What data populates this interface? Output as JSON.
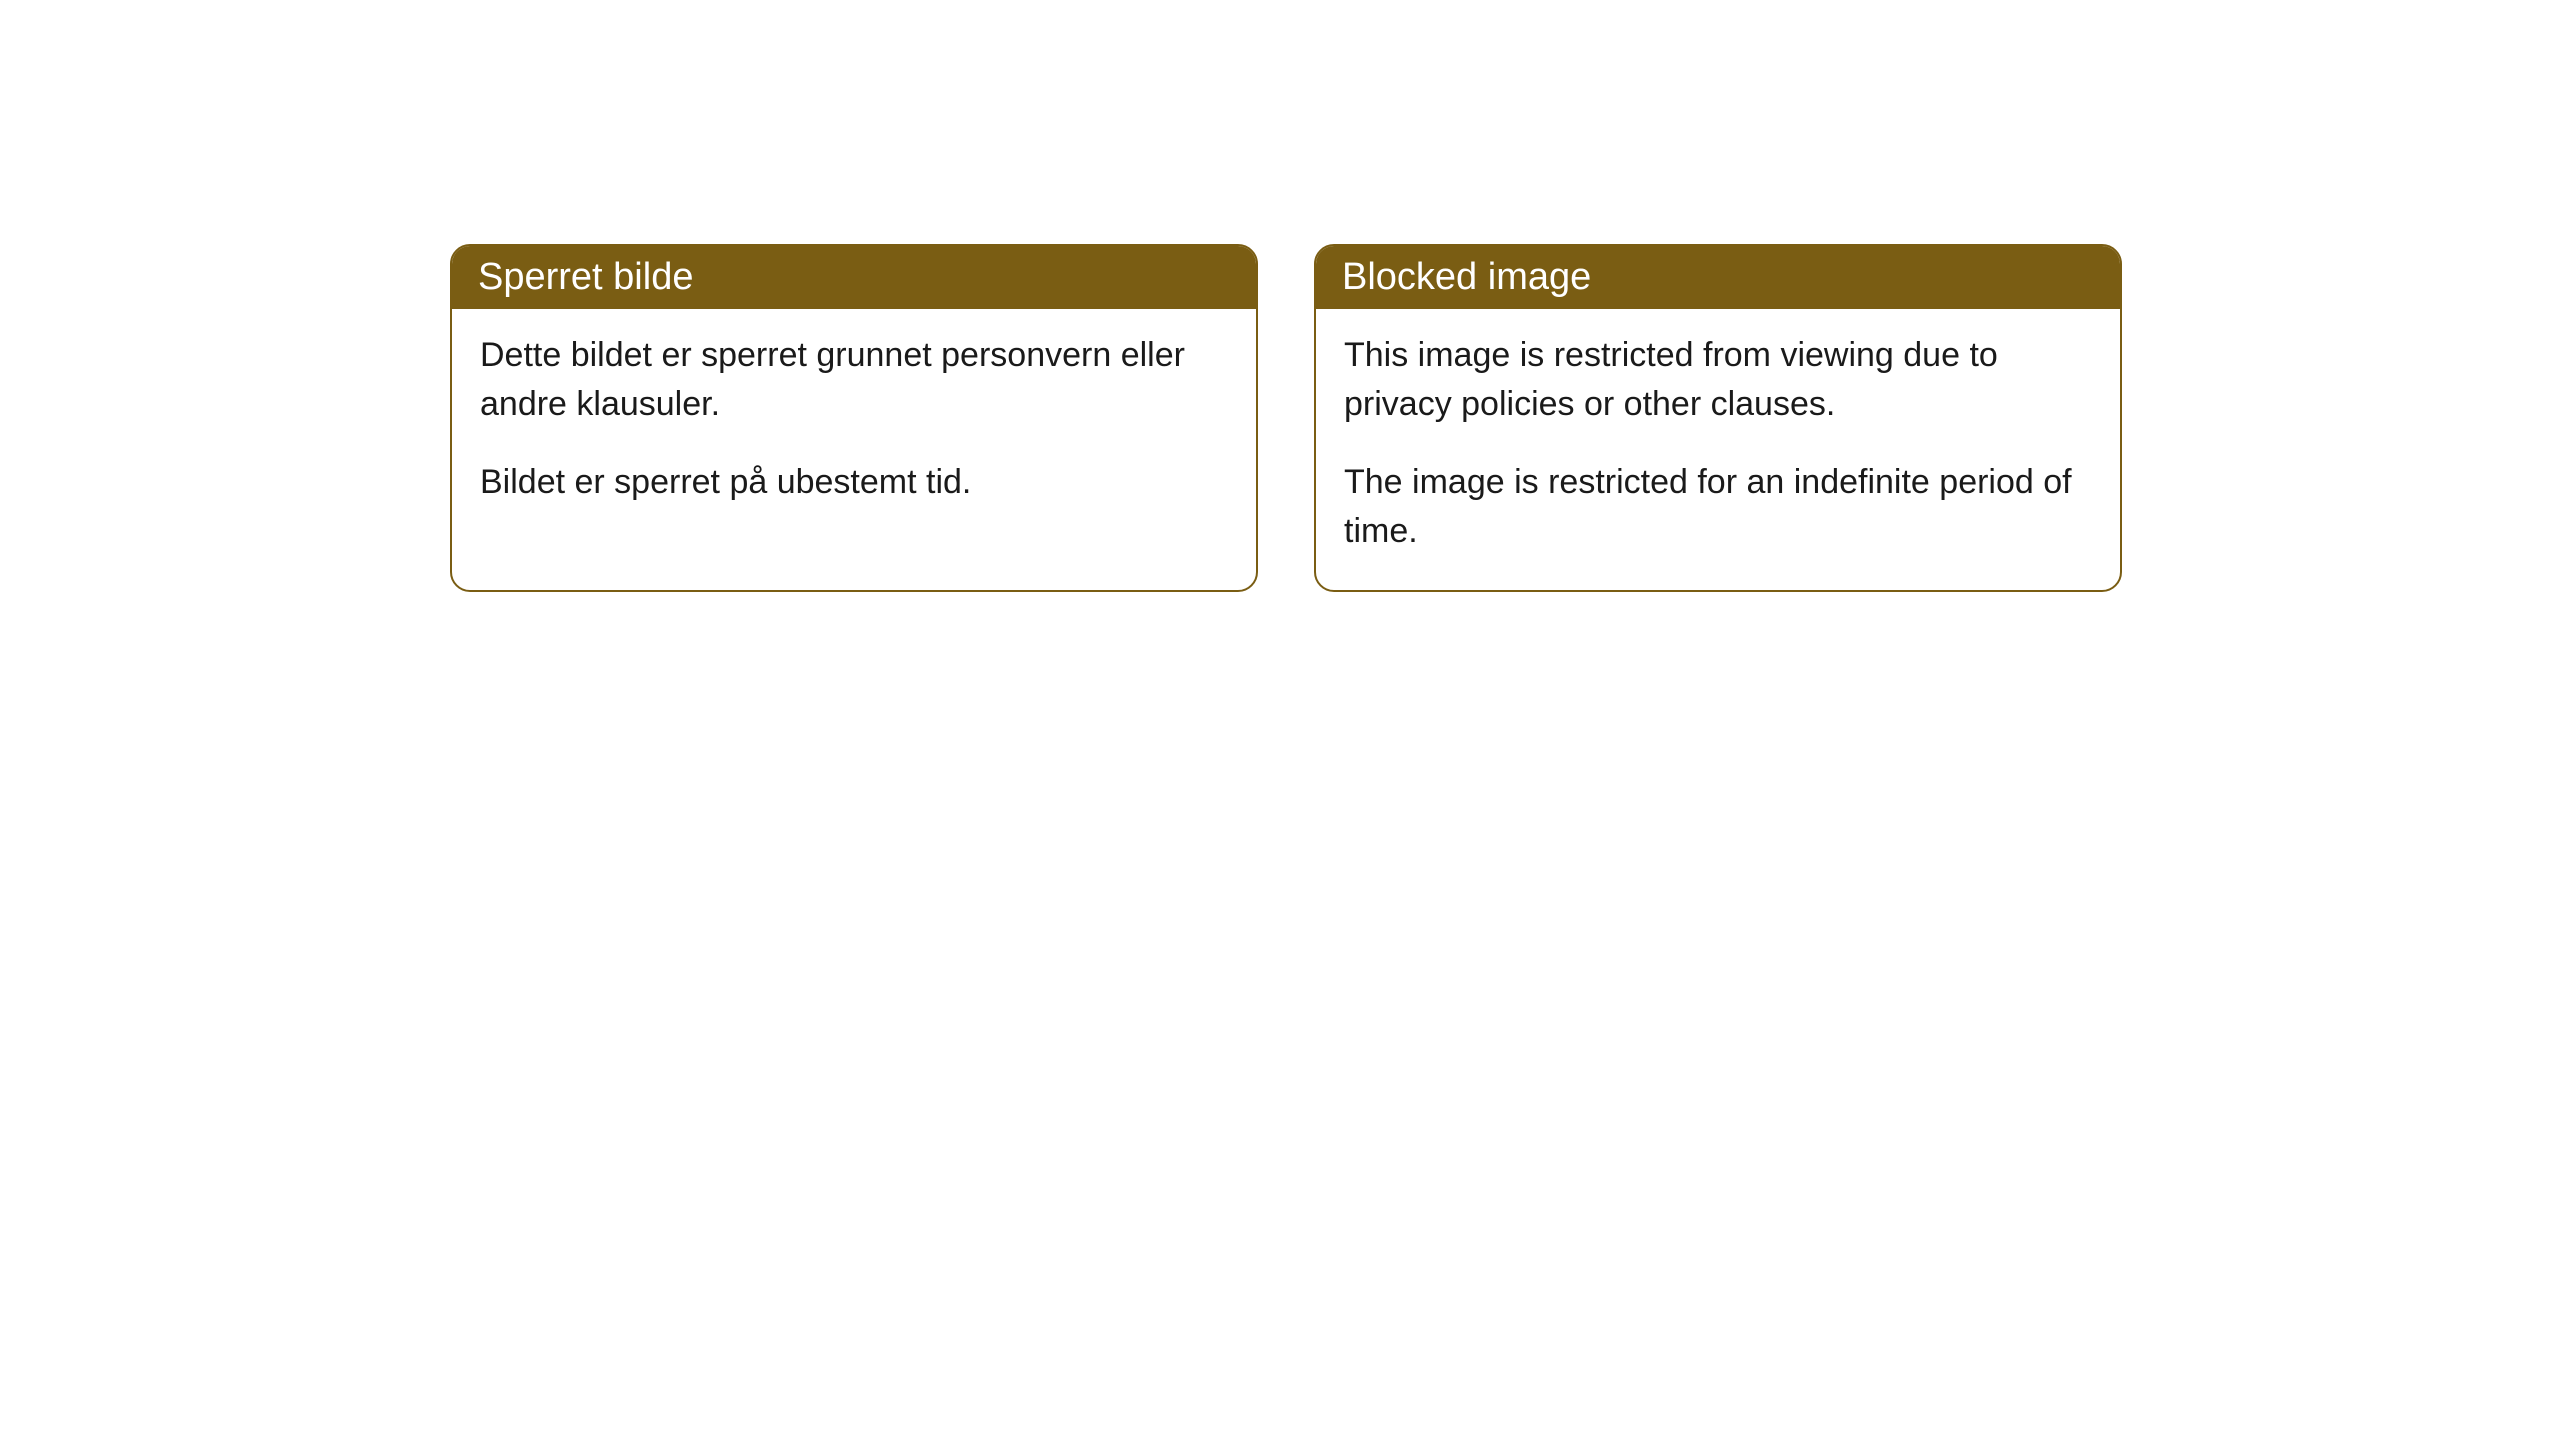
{
  "cards": [
    {
      "title": "Sperret bilde",
      "paragraph1": "Dette bildet er sperret grunnet personvern eller andre klausuler.",
      "paragraph2": "Bildet er sperret på ubestemt tid."
    },
    {
      "title": "Blocked image",
      "paragraph1": "This image is restricted from viewing due to privacy policies or other clauses.",
      "paragraph2": "The image is restricted for an indefinite period of time."
    }
  ],
  "styling": {
    "header_background": "#7a5d13",
    "header_text_color": "#ffffff",
    "border_color": "#7a5d13",
    "body_text_color": "#1a1a1a",
    "card_background": "#ffffff",
    "border_radius": 20,
    "header_fontsize": 38,
    "body_fontsize": 34
  }
}
